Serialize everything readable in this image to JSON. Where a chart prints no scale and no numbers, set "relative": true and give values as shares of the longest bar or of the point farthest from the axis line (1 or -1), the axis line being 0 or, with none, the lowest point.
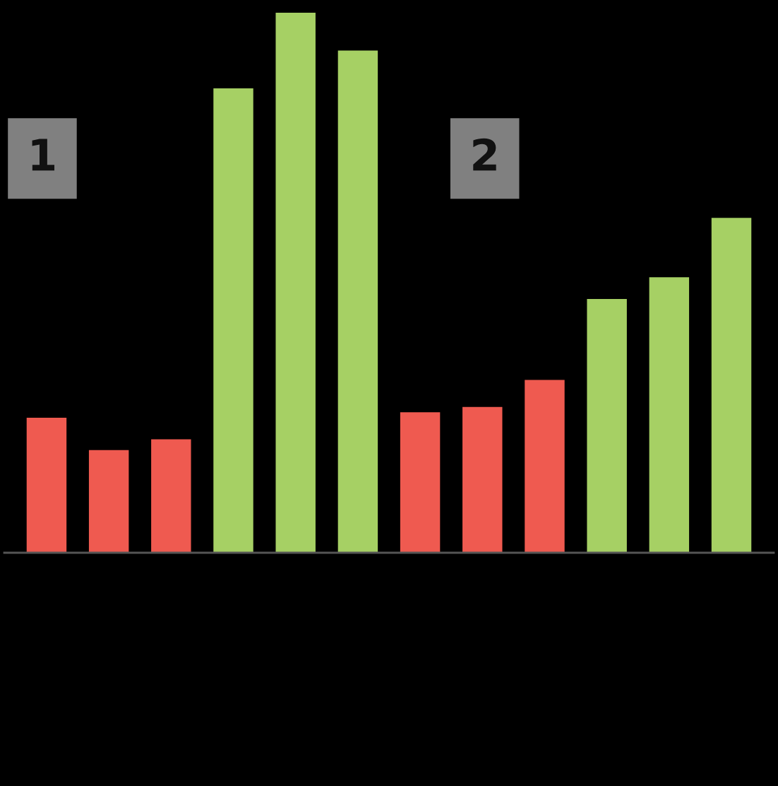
{
  "chart_data": {
    "type": "bar",
    "relative": true,
    "categories": [
      null,
      null,
      null,
      null,
      null,
      null,
      null,
      null,
      null,
      null,
      null,
      null
    ],
    "values": [
      0.25,
      0.19,
      0.21,
      0.86,
      1,
      0.93,
      0.26,
      0.27,
      0.32,
      0.47,
      0.51,
      0.62
    ],
    "colors": [
      "#ef5a50",
      "#ef5a50",
      "#ef5a50",
      "#a6d064",
      "#a6d064",
      "#a6d064",
      "#ef5a50",
      "#ef5a50",
      "#ef5a50",
      "#a6d064",
      "#a6d064",
      "#a6d064"
    ],
    "annotations": [
      "1",
      "2"
    ]
  }
}
